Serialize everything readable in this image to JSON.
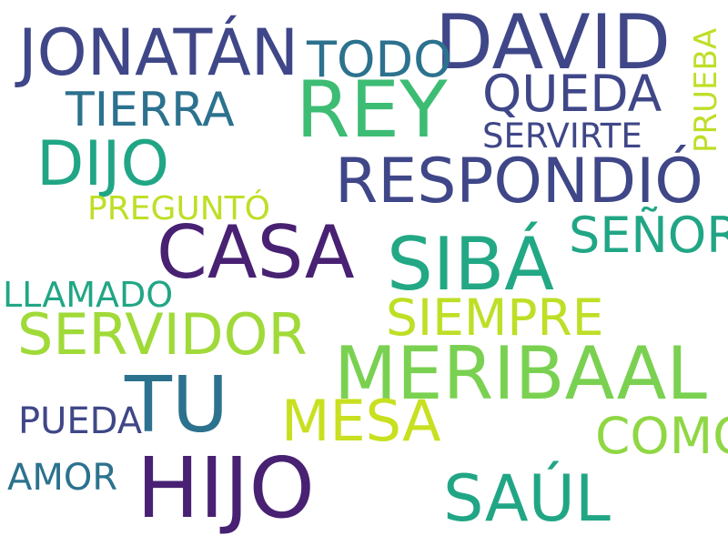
{
  "words": [
    {
      "text": "DAVID",
      "color": "#3f4788"
    },
    {
      "text": "JONATÁN",
      "color": "#3f4788"
    },
    {
      "text": "TODO",
      "color": "#2c728e"
    },
    {
      "text": "REY",
      "color": "#3dbc74"
    },
    {
      "text": "QUEDA",
      "color": "#3f4788"
    },
    {
      "text": "PRUEBA",
      "color": "#bddf26"
    },
    {
      "text": "TIERRA",
      "color": "#2c728e"
    },
    {
      "text": "SERVIRTE",
      "color": "#3f4788"
    },
    {
      "text": "DIJO",
      "color": "#21a685"
    },
    {
      "text": "RESPONDIÓ",
      "color": "#3f4788"
    },
    {
      "text": "PREGUNTÓ",
      "color": "#bddf26"
    },
    {
      "text": "CASA",
      "color": "#482173"
    },
    {
      "text": "SIBÁ",
      "color": "#22a884"
    },
    {
      "text": "SEÑOR",
      "color": "#21a685"
    },
    {
      "text": "LLAMADO",
      "color": "#21a685"
    },
    {
      "text": "SIEMPRE",
      "color": "#bddf26"
    },
    {
      "text": "SERVIDOR",
      "color": "#a0da39"
    },
    {
      "text": "MERIBAAL",
      "color": "#7ad151"
    },
    {
      "text": "TU",
      "color": "#2c728e"
    },
    {
      "text": "MESA",
      "color": "#c8e020"
    },
    {
      "text": "PUEDA",
      "color": "#3f4788"
    },
    {
      "text": "COMO",
      "color": "#8fd744"
    },
    {
      "text": "AMOR",
      "color": "#2c728e"
    },
    {
      "text": "HIJO",
      "color": "#482173"
    },
    {
      "text": "SAÚL",
      "color": "#21a685"
    }
  ]
}
